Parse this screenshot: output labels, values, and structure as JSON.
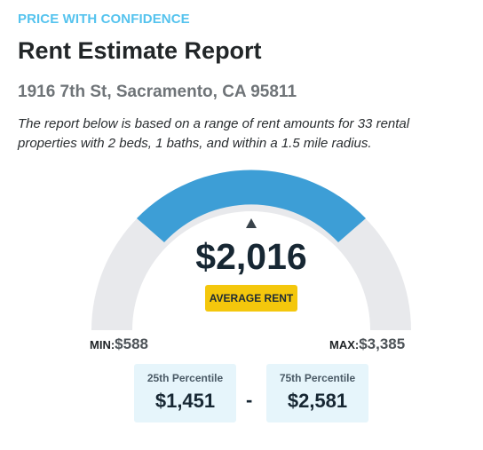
{
  "header": {
    "eyebrow": "PRICE WITH CONFIDENCE",
    "title": "Rent Estimate Report",
    "address": "1916 7th St, Sacramento, CA 95811",
    "description": "The report below is based on a range of rent amounts for 33 rental properties with 2 beds, 1 baths, and within a 1.5 mile radius."
  },
  "gauge": {
    "min_tag": "MIN:",
    "min_value": "$588",
    "max_tag": "MAX:",
    "max_value": "$3,385",
    "average_value": "$2,016",
    "average_label": "AVERAGE RENT",
    "track_color": "#e8e9ec",
    "band_color": "#3d9ed6",
    "marker_color": "#39434b"
  },
  "percentiles": {
    "p25_label": "25th Percentile",
    "p25_value": "$1,451",
    "separator": "-",
    "p75_label": "75th Percentile",
    "p75_value": "$2,581"
  },
  "colors": {
    "accent": "#55c3ee",
    "badge": "#f4c70c",
    "percentile_bg": "#e6f5fb"
  }
}
